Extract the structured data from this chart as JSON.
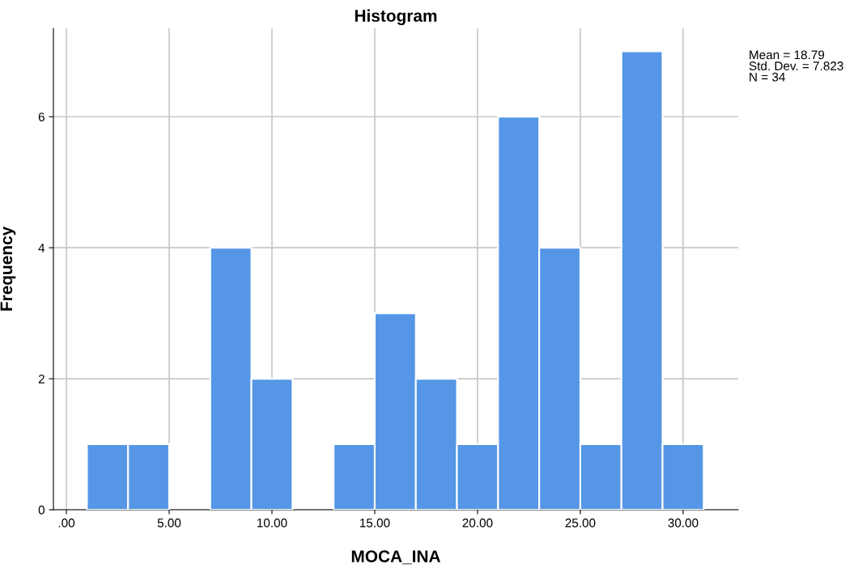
{
  "chart_data": {
    "type": "histogram",
    "title": "Histogram",
    "xlabel": "MOCA_INA",
    "ylabel": "Frequency",
    "bins": [
      1,
      3,
      5,
      7,
      9,
      11,
      13,
      15,
      17,
      19,
      21,
      23,
      25,
      27,
      29,
      31
    ],
    "values": [
      1,
      1,
      0,
      4,
      2,
      0,
      1,
      3,
      2,
      1,
      6,
      4,
      1,
      7,
      1
    ],
    "color": "#5596e6",
    "xlim": [
      -0.63,
      32.68
    ],
    "ylim": [
      0,
      7.35
    ],
    "xticks": [
      {
        "value": 0,
        "label": ".00"
      },
      {
        "value": 5,
        "label": "5.00"
      },
      {
        "value": 10,
        "label": "10.00"
      },
      {
        "value": 15,
        "label": "15.00"
      },
      {
        "value": 20,
        "label": "20.00"
      },
      {
        "value": 25,
        "label": "25.00"
      },
      {
        "value": 30,
        "label": "30.00"
      }
    ],
    "yticks": [
      0,
      2,
      4,
      6
    ],
    "grid": true,
    "annotations": [
      "Mean = 18.79\nStd. Dev. = 7.823\nN = 34"
    ]
  }
}
